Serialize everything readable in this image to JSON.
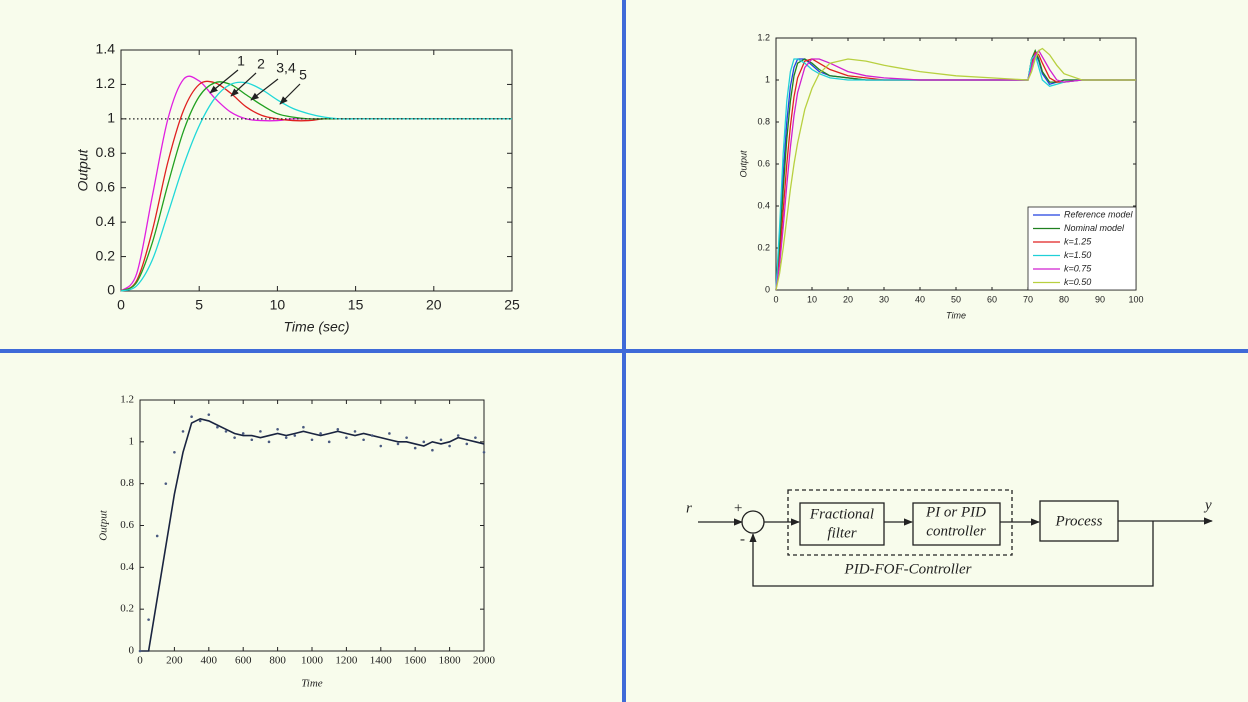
{
  "chart_data": [
    {
      "type": "line",
      "xlabel": "Time (sec)",
      "ylabel": "Output",
      "x": [
        0,
        1,
        2,
        3,
        4,
        5,
        6,
        7,
        8,
        9,
        10,
        11,
        12,
        13,
        14,
        15,
        16,
        17,
        18,
        19,
        20,
        21,
        22,
        23,
        24,
        25
      ],
      "xlim": [
        0,
        25
      ],
      "xticks": [
        0,
        5,
        10,
        15,
        20,
        25
      ],
      "ylim": [
        0,
        1.4
      ],
      "yticks": [
        0,
        0.2,
        0.4,
        0.6,
        0.8,
        1,
        1.2,
        1.4
      ],
      "annotations": [
        "1",
        "2",
        "3,4",
        "5"
      ],
      "series": [
        {
          "color": "#e020e0",
          "style": "solid",
          "values": [
            0,
            0.1,
            0.55,
            1.0,
            1.23,
            1.22,
            1.12,
            1.04,
            1.0,
            0.99,
            0.99,
            1,
            1,
            1,
            1,
            1,
            1,
            1,
            1,
            1,
            1,
            1,
            1,
            1,
            1,
            1
          ]
        },
        {
          "color": "#e02020",
          "style": "solid",
          "values": [
            0,
            0.06,
            0.35,
            0.75,
            1.05,
            1.2,
            1.21,
            1.15,
            1.07,
            1.02,
            1.0,
            0.99,
            0.99,
            1,
            1,
            1,
            1,
            1,
            1,
            1,
            1,
            1,
            1,
            1,
            1,
            1
          ]
        },
        {
          "color": "#20a020",
          "style": "solid",
          "values": [
            0,
            0.05,
            0.28,
            0.62,
            0.93,
            1.13,
            1.21,
            1.2,
            1.14,
            1.08,
            1.03,
            1.01,
            1,
            1,
            1,
            1,
            1,
            1,
            1,
            1,
            1,
            1,
            1,
            1,
            1,
            1
          ]
        },
        {
          "color": "#20d8d8",
          "style": "solid",
          "values": [
            0,
            0.03,
            0.18,
            0.45,
            0.73,
            0.96,
            1.12,
            1.2,
            1.21,
            1.17,
            1.11,
            1.06,
            1.03,
            1.01,
            1,
            1,
            1,
            1,
            1,
            1,
            1,
            1,
            1,
            1,
            1,
            1
          ]
        },
        {
          "color": "#222222",
          "style": "dotted",
          "values": [
            1,
            1,
            1,
            1,
            1,
            1,
            1,
            1,
            1,
            1,
            1,
            1,
            1,
            1,
            1,
            1,
            1,
            1,
            1,
            1,
            1,
            1,
            1,
            1,
            1,
            1
          ]
        }
      ]
    },
    {
      "type": "line",
      "xlabel": "Time",
      "ylabel": "Output",
      "legend": "lower right",
      "x": [
        0,
        1,
        2,
        3,
        4,
        5,
        6,
        8,
        10,
        12,
        15,
        20,
        25,
        30,
        40,
        50,
        60,
        70,
        71,
        72,
        73,
        74,
        76,
        78,
        80,
        85,
        90,
        100
      ],
      "xlim": [
        0,
        100
      ],
      "xticks": [
        0,
        10,
        20,
        30,
        40,
        50,
        60,
        70,
        80,
        90,
        100
      ],
      "ylim": [
        0,
        1.2
      ],
      "yticks": [
        0,
        0.2,
        0.4,
        0.6,
        0.8,
        1,
        1.2
      ],
      "series": [
        {
          "name": "Reference model",
          "color": "#2040e0",
          "style": "solid",
          "values": [
            0,
            0.25,
            0.55,
            0.8,
            0.97,
            1.06,
            1.1,
            1.1,
            1.07,
            1.04,
            1.02,
            1.01,
            1,
            1,
            1,
            1,
            1,
            1,
            1.1,
            1.13,
            1.09,
            1.03,
            0.98,
            0.99,
            1,
            1,
            1,
            1
          ]
        },
        {
          "name": "Nominal model",
          "color": "#208020",
          "style": "solid",
          "values": [
            0,
            0.2,
            0.48,
            0.72,
            0.9,
            1.02,
            1.08,
            1.1,
            1.08,
            1.05,
            1.02,
            1.01,
            1,
            1,
            1,
            1,
            1,
            1,
            1.1,
            1.14,
            1.1,
            1.04,
            0.99,
            0.99,
            1,
            1,
            1,
            1
          ]
        },
        {
          "name": "k=1.25",
          "color": "#e02020",
          "style": "solid",
          "values": [
            0,
            0.15,
            0.38,
            0.6,
            0.78,
            0.92,
            1.01,
            1.09,
            1.1,
            1.08,
            1.05,
            1.02,
            1.01,
            1,
            1,
            1,
            1,
            1,
            1.08,
            1.13,
            1.12,
            1.08,
            1.01,
            0.99,
            0.99,
            1,
            1,
            1
          ]
        },
        {
          "name": "k=1.50",
          "color": "#20d0d8",
          "style": "solid",
          "values": [
            0,
            0.3,
            0.65,
            0.9,
            1.04,
            1.1,
            1.1,
            1.08,
            1.05,
            1.03,
            1.01,
            1,
            1,
            1,
            1,
            1,
            1,
            1,
            1.1,
            1.12,
            1.06,
            1.0,
            0.97,
            0.98,
            0.99,
            1,
            1,
            1
          ]
        },
        {
          "name": "k=0.75",
          "color": "#d020d0",
          "style": "solid",
          "values": [
            0,
            0.12,
            0.3,
            0.5,
            0.68,
            0.83,
            0.94,
            1.06,
            1.1,
            1.1,
            1.08,
            1.04,
            1.02,
            1.01,
            1,
            1,
            1,
            1,
            1.06,
            1.12,
            1.14,
            1.11,
            1.05,
            1.0,
            0.99,
            1,
            1,
            1
          ]
        },
        {
          "name": "k=0.50",
          "color": "#b8d040",
          "style": "solid",
          "values": [
            0,
            0.08,
            0.2,
            0.34,
            0.48,
            0.6,
            0.7,
            0.86,
            0.96,
            1.03,
            1.08,
            1.1,
            1.09,
            1.07,
            1.04,
            1.02,
            1.01,
            1,
            1.04,
            1.1,
            1.14,
            1.15,
            1.12,
            1.07,
            1.03,
            1,
            1,
            1
          ]
        }
      ]
    },
    {
      "type": "line",
      "xlabel": "Time",
      "ylabel": "Output",
      "x": [
        0,
        50,
        100,
        150,
        200,
        250,
        300,
        350,
        400,
        450,
        500,
        550,
        600,
        650,
        700,
        750,
        800,
        850,
        900,
        950,
        1000,
        1050,
        1100,
        1150,
        1200,
        1250,
        1300,
        1350,
        1400,
        1450,
        1500,
        1550,
        1600,
        1650,
        1700,
        1750,
        1800,
        1850,
        1900,
        1950,
        2000
      ],
      "xlim": [
        0,
        2000
      ],
      "xticks": [
        0,
        200,
        400,
        600,
        800,
        1000,
        1200,
        1400,
        1600,
        1800,
        2000
      ],
      "ylim": [
        0,
        1.2
      ],
      "yticks": [
        0,
        0.2,
        0.4,
        0.6,
        0.8,
        1,
        1.2
      ],
      "series": [
        {
          "color": "#1a2440",
          "style": "solid",
          "values": [
            0,
            0,
            0.25,
            0.5,
            0.75,
            0.95,
            1.09,
            1.11,
            1.1,
            1.08,
            1.06,
            1.04,
            1.03,
            1.03,
            1.02,
            1.03,
            1.04,
            1.03,
            1.04,
            1.05,
            1.04,
            1.03,
            1.04,
            1.05,
            1.04,
            1.03,
            1.04,
            1.03,
            1.02,
            1.01,
            1.0,
            1.0,
            0.99,
            0.98,
            1.0,
            0.99,
            1.0,
            1.02,
            1.01,
            1.0,
            0.99
          ]
        },
        {
          "color": "#4a5a80",
          "style": "dots",
          "values": [
            0,
            0.15,
            0.55,
            0.8,
            0.95,
            1.05,
            1.12,
            1.1,
            1.13,
            1.07,
            1.05,
            1.02,
            1.04,
            1.01,
            1.05,
            1.0,
            1.06,
            1.02,
            1.03,
            1.07,
            1.01,
            1.04,
            1.0,
            1.06,
            1.02,
            1.05,
            1.01,
            1.03,
            0.98,
            1.04,
            0.99,
            1.02,
            0.97,
            1.0,
            0.96,
            1.01,
            0.98,
            1.03,
            0.99,
            1.02,
            0.95
          ]
        }
      ]
    }
  ],
  "diagram": {
    "input": "r",
    "plus": "+",
    "minus": "-",
    "filter": [
      "Fractional",
      "filter"
    ],
    "controller": [
      "PI or PID",
      "controller"
    ],
    "process": "Process",
    "output": "y",
    "caption": "PID-FOF-Controller"
  }
}
